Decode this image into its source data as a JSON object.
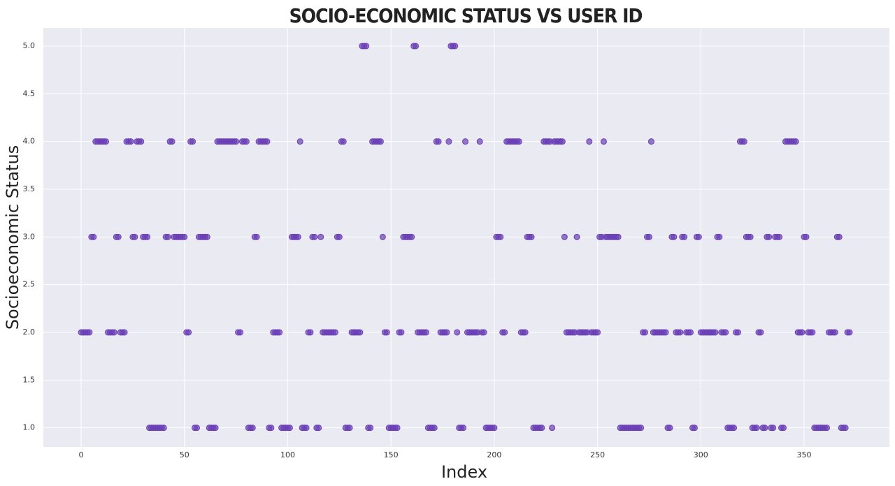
{
  "chart_data": {
    "type": "scatter",
    "title": "SOCIO-ECONOMIC STATUS VS USER ID",
    "x_label": "Index",
    "y_label": "Socioeconomic Status",
    "color": "#6a3fb5",
    "grid": true,
    "xlim": [
      -18.3,
      391.3
    ],
    "ylim": [
      0.8,
      5.19
    ],
    "xticks": [
      0,
      50,
      100,
      150,
      200,
      250,
      300,
      350
    ],
    "yticks": [
      {
        "value": 1,
        "label": "1.0"
      },
      {
        "value": 1.5,
        "label": "1.5"
      },
      {
        "value": 2,
        "label": "2.0"
      },
      {
        "value": 2.5,
        "label": "2.5"
      },
      {
        "value": 3,
        "label": "3.0"
      },
      {
        "value": 3.5,
        "label": "3.5"
      },
      {
        "value": 4,
        "label": "4.0"
      },
      {
        "value": 4.5,
        "label": "4.5"
      },
      {
        "value": 5,
        "label": "5.0"
      }
    ],
    "x": [
      0,
      1,
      2,
      3,
      4,
      5,
      6,
      7,
      8,
      9,
      10,
      11,
      12,
      13,
      14,
      15,
      16,
      17,
      18,
      19,
      20,
      21,
      22,
      23,
      24,
      25,
      26,
      27,
      28,
      29,
      30,
      31,
      32,
      33,
      34,
      35,
      36,
      37,
      38,
      39,
      40,
      41,
      42,
      43,
      44,
      45,
      46,
      47,
      48,
      49,
      50,
      51,
      52,
      53,
      54,
      55,
      56,
      57,
      58,
      59,
      60,
      61,
      62,
      63,
      64,
      65,
      66,
      67,
      68,
      69,
      70,
      71,
      72,
      73,
      74,
      75,
      76,
      77,
      78,
      79,
      80,
      81,
      82,
      83,
      84,
      85,
      86,
      87,
      88,
      89,
      90,
      91,
      92,
      93,
      94,
      95,
      96,
      97,
      98,
      99,
      100,
      101,
      102,
      103,
      104,
      105,
      106,
      107,
      108,
      109,
      110,
      111,
      112,
      113,
      114,
      115,
      116,
      117,
      118,
      119,
      120,
      121,
      122,
      123,
      124,
      125,
      126,
      127,
      128,
      129,
      130,
      131,
      132,
      133,
      134,
      135,
      136,
      137,
      138,
      139,
      140,
      141,
      142,
      143,
      144,
      145,
      146,
      147,
      148,
      149,
      150,
      151,
      152,
      153,
      154,
      155,
      156,
      157,
      158,
      159,
      160,
      161,
      162,
      163,
      164,
      165,
      166,
      167,
      168,
      169,
      170,
      171,
      172,
      173,
      174,
      175,
      176,
      177,
      178,
      179,
      180,
      181,
      182,
      183,
      184,
      185,
      186,
      187,
      188,
      189,
      190,
      191,
      192,
      193,
      194,
      195,
      196,
      197,
      198,
      199,
      200,
      201,
      202,
      203,
      204,
      205,
      206,
      207,
      208,
      209,
      210,
      211,
      212,
      213,
      214,
      215,
      216,
      217,
      218,
      219,
      220,
      221,
      222,
      223,
      224,
      225,
      226,
      227,
      228,
      229,
      230,
      231,
      232,
      233,
      234,
      235,
      236,
      237,
      238,
      239,
      240,
      241,
      242,
      243,
      244,
      245,
      246,
      247,
      248,
      249,
      250,
      251,
      252,
      253,
      254,
      255,
      256,
      257,
      258,
      259,
      260,
      261,
      262,
      263,
      264,
      265,
      266,
      267,
      268,
      269,
      270,
      271,
      272,
      273,
      274,
      275,
      276,
      277,
      278,
      279,
      280,
      281,
      282,
      283,
      284,
      285,
      286,
      287,
      288,
      289,
      290,
      291,
      292,
      293,
      294,
      295,
      296,
      297,
      298,
      299,
      300,
      301,
      302,
      303,
      304,
      305,
      306,
      307,
      308,
      309,
      310,
      311,
      312,
      313,
      314,
      315,
      316,
      317,
      318,
      319,
      320,
      321,
      322,
      323,
      324,
      325,
      326,
      327,
      328,
      329,
      330,
      331,
      332,
      333,
      334,
      335,
      336,
      337,
      338,
      339,
      340,
      341,
      342,
      343,
      344,
      345,
      346,
      347,
      348,
      349,
      350,
      351,
      352,
      353,
      354,
      355,
      356,
      357,
      358,
      359,
      360,
      361,
      362,
      363,
      364,
      365,
      366,
      367,
      368,
      369,
      370,
      371,
      372
    ],
    "values": [
      2,
      2,
      2,
      2,
      2,
      3,
      3,
      4,
      4,
      4,
      4,
      4,
      4,
      2,
      2,
      2,
      2,
      3,
      3,
      2,
      2,
      2,
      4,
      4,
      4,
      3,
      3,
      4,
      4,
      4,
      3,
      3,
      3,
      1,
      1,
      1,
      1,
      1,
      1,
      1,
      1,
      3,
      3,
      4,
      4,
      3,
      3,
      3,
      3,
      3,
      3,
      2,
      2,
      4,
      4,
      1,
      1,
      3,
      3,
      3,
      3,
      3,
      1,
      1,
      1,
      1,
      4,
      4,
      4,
      4,
      4,
      4,
      4,
      4,
      4,
      4,
      2,
      2,
      4,
      4,
      4,
      1,
      1,
      1,
      3,
      3,
      4,
      4,
      4,
      4,
      4,
      1,
      1,
      2,
      2,
      2,
      2,
      1,
      1,
      1,
      1,
      1,
      3,
      3,
      3,
      3,
      4,
      1,
      1,
      1,
      2,
      2,
      3,
      3,
      1,
      1,
      3,
      2,
      2,
      2,
      2,
      2,
      2,
      2,
      3,
      3,
      4,
      4,
      1,
      1,
      1,
      2,
      2,
      2,
      2,
      2,
      5,
      5,
      5,
      1,
      1,
      4,
      4,
      4,
      4,
      4,
      3,
      2,
      2,
      1,
      1,
      1,
      1,
      1,
      2,
      2,
      3,
      3,
      3,
      3,
      3,
      5,
      5,
      2,
      2,
      2,
      2,
      2,
      1,
      1,
      1,
      1,
      4,
      4,
      2,
      2,
      2,
      2,
      4,
      5,
      5,
      5,
      2,
      1,
      1,
      1,
      4,
      2,
      2,
      2,
      2,
      2,
      2,
      4,
      2,
      2,
      1,
      1,
      1,
      1,
      1,
      3,
      3,
      3,
      2,
      2,
      4,
      4,
      4,
      4,
      4,
      4,
      4,
      2,
      2,
      2,
      3,
      3,
      3,
      1,
      1,
      1,
      1,
      1,
      4,
      4,
      4,
      4,
      1,
      4,
      4,
      4,
      4,
      4,
      3,
      2,
      2,
      2,
      2,
      2,
      3,
      2,
      2,
      2,
      2,
      2,
      4,
      2,
      2,
      2,
      2,
      3,
      3,
      4,
      3,
      3,
      3,
      3,
      3,
      3,
      3,
      1,
      1,
      1,
      1,
      1,
      1,
      1,
      1,
      1,
      1,
      1,
      2,
      2,
      3,
      3,
      4,
      2,
      2,
      2,
      2,
      2,
      2,
      2,
      1,
      1,
      3,
      3,
      2,
      2,
      2,
      3,
      3,
      2,
      2,
      2,
      1,
      1,
      3,
      3,
      2,
      2,
      2,
      2,
      2,
      2,
      2,
      2,
      3,
      3,
      2,
      2,
      2,
      1,
      1,
      1,
      1,
      2,
      2,
      4,
      4,
      4,
      3,
      3,
      3,
      1,
      1,
      1,
      2,
      2,
      1,
      1,
      3,
      3,
      1,
      1,
      3,
      3,
      3,
      1,
      1,
      4,
      4,
      4,
      4,
      4,
      4,
      2,
      2,
      2,
      3,
      3,
      2,
      2,
      2,
      1,
      1,
      1,
      1,
      1,
      1,
      1,
      2,
      2,
      2,
      2,
      3,
      3,
      1,
      1,
      1,
      2,
      2
    ]
  }
}
